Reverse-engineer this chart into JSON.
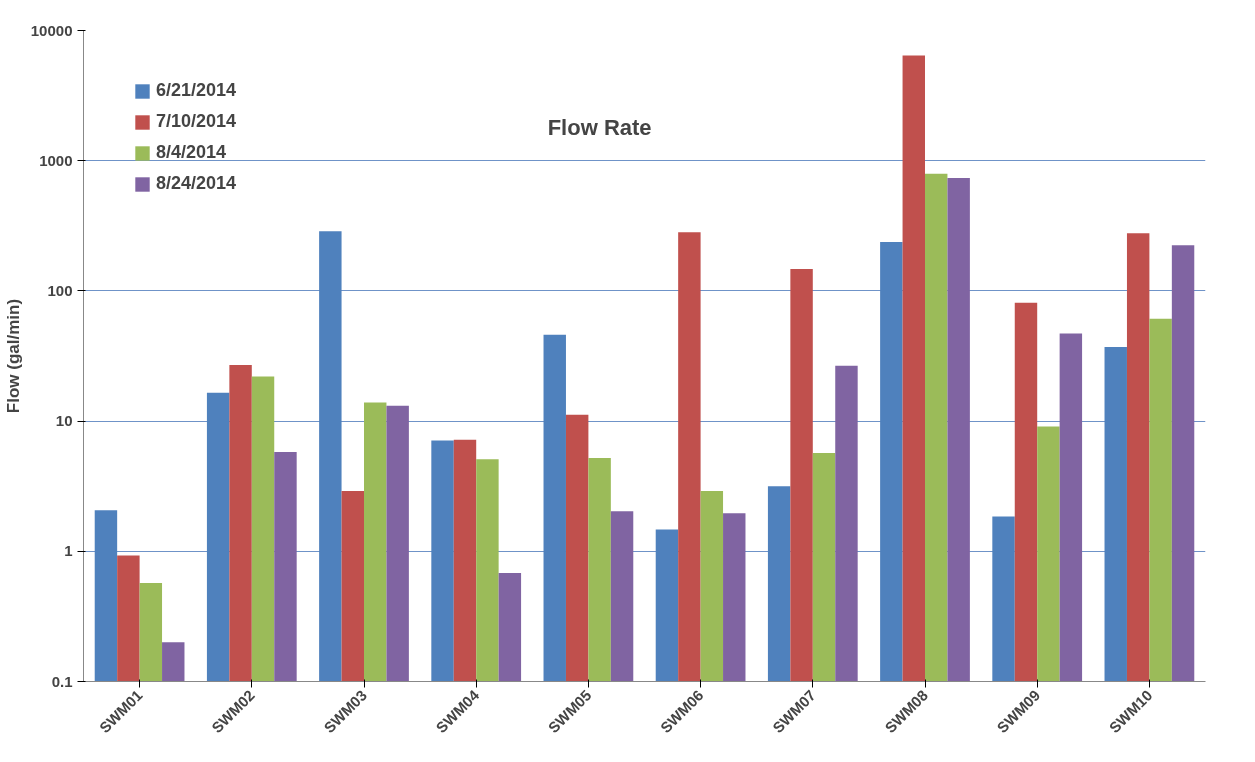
{
  "chart_data": {
    "type": "bar",
    "title": "Flow Rate",
    "ylabel": "Flow (gal/min)",
    "categories": [
      "SWM01",
      "SWM02",
      "SWM03",
      "SWM04",
      "SWM05",
      "SWM06",
      "SWM07",
      "SWM08",
      "SWM09",
      "SWM10"
    ],
    "series": [
      {
        "name": "6/21/2014",
        "color": "#4f81bd",
        "values": [
          2.07,
          16.5,
          287,
          7.1,
          46,
          1.47,
          3.16,
          237,
          1.85,
          37
        ]
      },
      {
        "name": "7/10/2014",
        "color": "#c0504d",
        "values": [
          0.93,
          27,
          2.9,
          7.2,
          11.2,
          282,
          147,
          6430,
          81,
          277
        ]
      },
      {
        "name": "8/4/2014",
        "color": "#9bbb59",
        "values": [
          0.57,
          22,
          13.9,
          5.1,
          5.2,
          2.9,
          5.7,
          794,
          9.1,
          61
        ]
      },
      {
        "name": "8/24/2014",
        "color": "#8064a2",
        "values": [
          0.2,
          5.8,
          13.1,
          0.68,
          2.03,
          1.96,
          26.6,
          735,
          47,
          224
        ]
      }
    ],
    "log": "y",
    "ylim": [
      0.1,
      10000
    ],
    "yticks": [
      0.1,
      1,
      10,
      100,
      1000,
      10000
    ],
    "grid": "y",
    "legend": "top left"
  }
}
